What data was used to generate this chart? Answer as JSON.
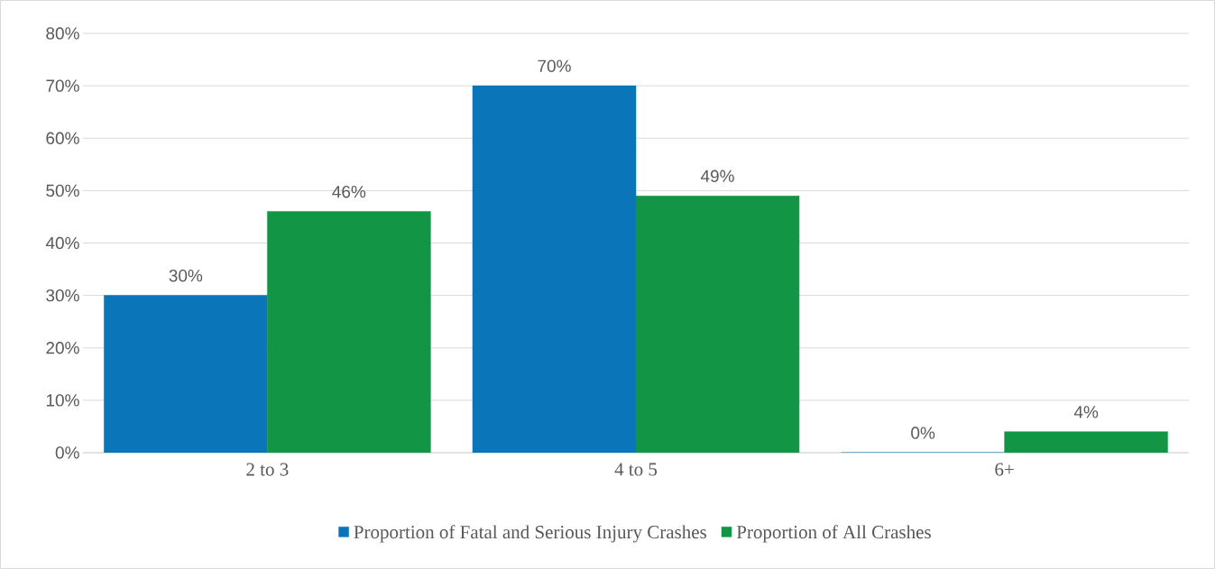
{
  "chart_data": {
    "type": "bar",
    "categories": [
      "2 to 3",
      "4 to 5",
      "6+"
    ],
    "series": [
      {
        "name": "Proportion of Fatal and Serious Injury Crashes",
        "color": "#0a75b9",
        "values": [
          30,
          70,
          0
        ],
        "value_labels": [
          "30%",
          "70%",
          "0%"
        ]
      },
      {
        "name": "Proportion of All Crashes",
        "color": "#129645",
        "values": [
          46,
          49,
          4
        ],
        "value_labels": [
          "46%",
          "49%",
          "4%"
        ]
      }
    ],
    "ylim": [
      0,
      80
    ],
    "yticks": [
      {
        "value": 0,
        "label": "0%"
      },
      {
        "value": 10,
        "label": "10%"
      },
      {
        "value": 20,
        "label": "20%"
      },
      {
        "value": 30,
        "label": "30%"
      },
      {
        "value": 40,
        "label": "40%"
      },
      {
        "value": 50,
        "label": "50%"
      },
      {
        "value": 60,
        "label": "60%"
      },
      {
        "value": 70,
        "label": "70%"
      },
      {
        "value": 80,
        "label": "80%"
      }
    ],
    "grid": "y",
    "legend": "bottom"
  }
}
